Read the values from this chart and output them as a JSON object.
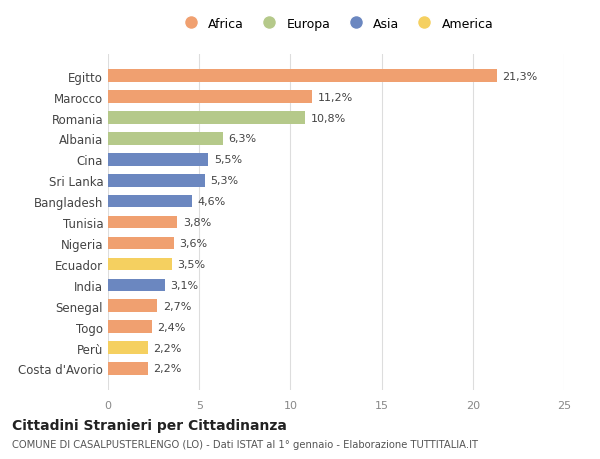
{
  "countries": [
    "Egitto",
    "Marocco",
    "Romania",
    "Albania",
    "Cina",
    "Sri Lanka",
    "Bangladesh",
    "Tunisia",
    "Nigeria",
    "Ecuador",
    "India",
    "Senegal",
    "Togo",
    "Perù",
    "Costa d'Avorio"
  ],
  "values": [
    21.3,
    11.2,
    10.8,
    6.3,
    5.5,
    5.3,
    4.6,
    3.8,
    3.6,
    3.5,
    3.1,
    2.7,
    2.4,
    2.2,
    2.2
  ],
  "labels": [
    "21,3%",
    "11,2%",
    "10,8%",
    "6,3%",
    "5,5%",
    "5,3%",
    "4,6%",
    "3,8%",
    "3,6%",
    "3,5%",
    "3,1%",
    "2,7%",
    "2,4%",
    "2,2%",
    "2,2%"
  ],
  "continents": [
    "Africa",
    "Africa",
    "Europa",
    "Europa",
    "Asia",
    "Asia",
    "Asia",
    "Africa",
    "Africa",
    "America",
    "Asia",
    "Africa",
    "Africa",
    "America",
    "Africa"
  ],
  "colors": {
    "Africa": "#F0A070",
    "Europa": "#B5C98A",
    "Asia": "#6B87C0",
    "America": "#F5D060"
  },
  "legend_order": [
    "Africa",
    "Europa",
    "Asia",
    "America"
  ],
  "title": "Cittadini Stranieri per Cittadinanza",
  "subtitle": "COMUNE DI CASALPUSTERLENGO (LO) - Dati ISTAT al 1° gennaio - Elaborazione TUTTITALIA.IT",
  "xlim": [
    0,
    25
  ],
  "xticks": [
    0,
    5,
    10,
    15,
    20,
    25
  ],
  "background_color": "#ffffff",
  "grid_color": "#dddddd"
}
